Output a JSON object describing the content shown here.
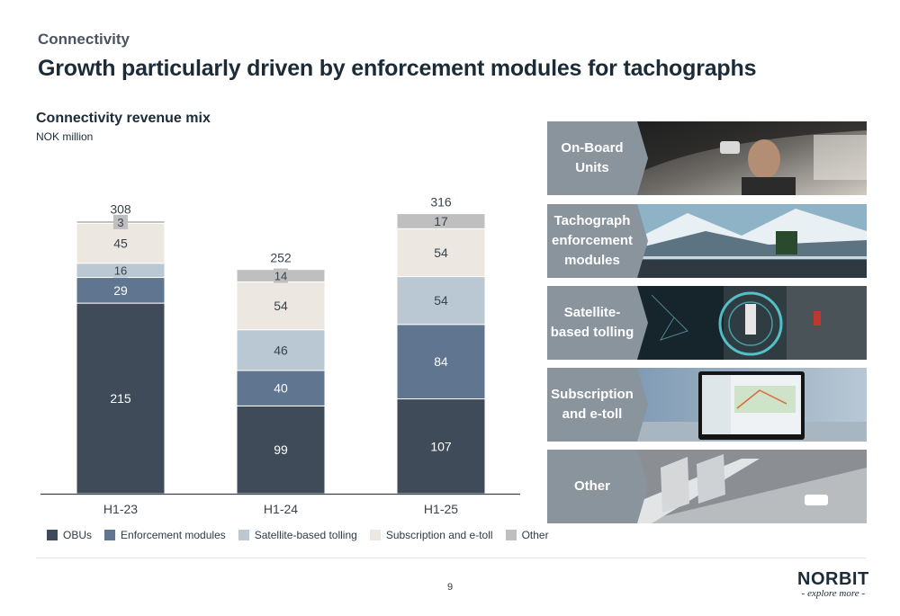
{
  "header": {
    "kicker": "Connectivity",
    "title": "Growth particularly driven by enforcement modules for tachographs"
  },
  "chart_data": {
    "type": "bar",
    "stacked": true,
    "title": "Connectivity revenue mix",
    "unit": "NOK million",
    "categories": [
      "H1-23",
      "H1-24",
      "H1-25"
    ],
    "totals": [
      308,
      252,
      316
    ],
    "series": [
      {
        "name": "OBUs",
        "color": "#3f4b59",
        "values": [
          215,
          99,
          107
        ]
      },
      {
        "name": "Enforcement modules",
        "color": "#5f7590",
        "values": [
          29,
          40,
          84
        ]
      },
      {
        "name": "Satellite-based tolling",
        "color": "#b9c8d3",
        "values": [
          16,
          46,
          54
        ]
      },
      {
        "name": "Subscription and e-toll",
        "color": "#ece7e1",
        "values": [
          45,
          54,
          54
        ]
      },
      {
        "name": "Other",
        "color": "#bfbfbf",
        "values": [
          3,
          14,
          17
        ]
      }
    ],
    "ylim": [
      0,
      320
    ],
    "grid": false,
    "legend": "bottom"
  },
  "tiles": [
    {
      "label": "On-Board Units",
      "label_lines": [
        "On-Board",
        "Units"
      ],
      "icon": "driver-photo"
    },
    {
      "label": "Tachograph enforcement modules",
      "label_lines": [
        "Tachograph",
        "enforcement",
        "modules"
      ],
      "icon": "truck-road-photo"
    },
    {
      "label": "Satellite-based tolling",
      "label_lines": [
        "Satellite-",
        "based tolling"
      ],
      "icon": "satellite-traffic-photo"
    },
    {
      "label": "Subscription and e-toll",
      "label_lines": [
        "Subscription",
        "and e-toll"
      ],
      "icon": "monitor-dashboard-photo"
    },
    {
      "label": "Other",
      "label_lines": [
        "Other"
      ],
      "icon": "highway-aerial-photo"
    }
  ],
  "footer": {
    "page_number": "9",
    "logo_text": "NORBIT",
    "logo_tagline": "- explore more -"
  }
}
